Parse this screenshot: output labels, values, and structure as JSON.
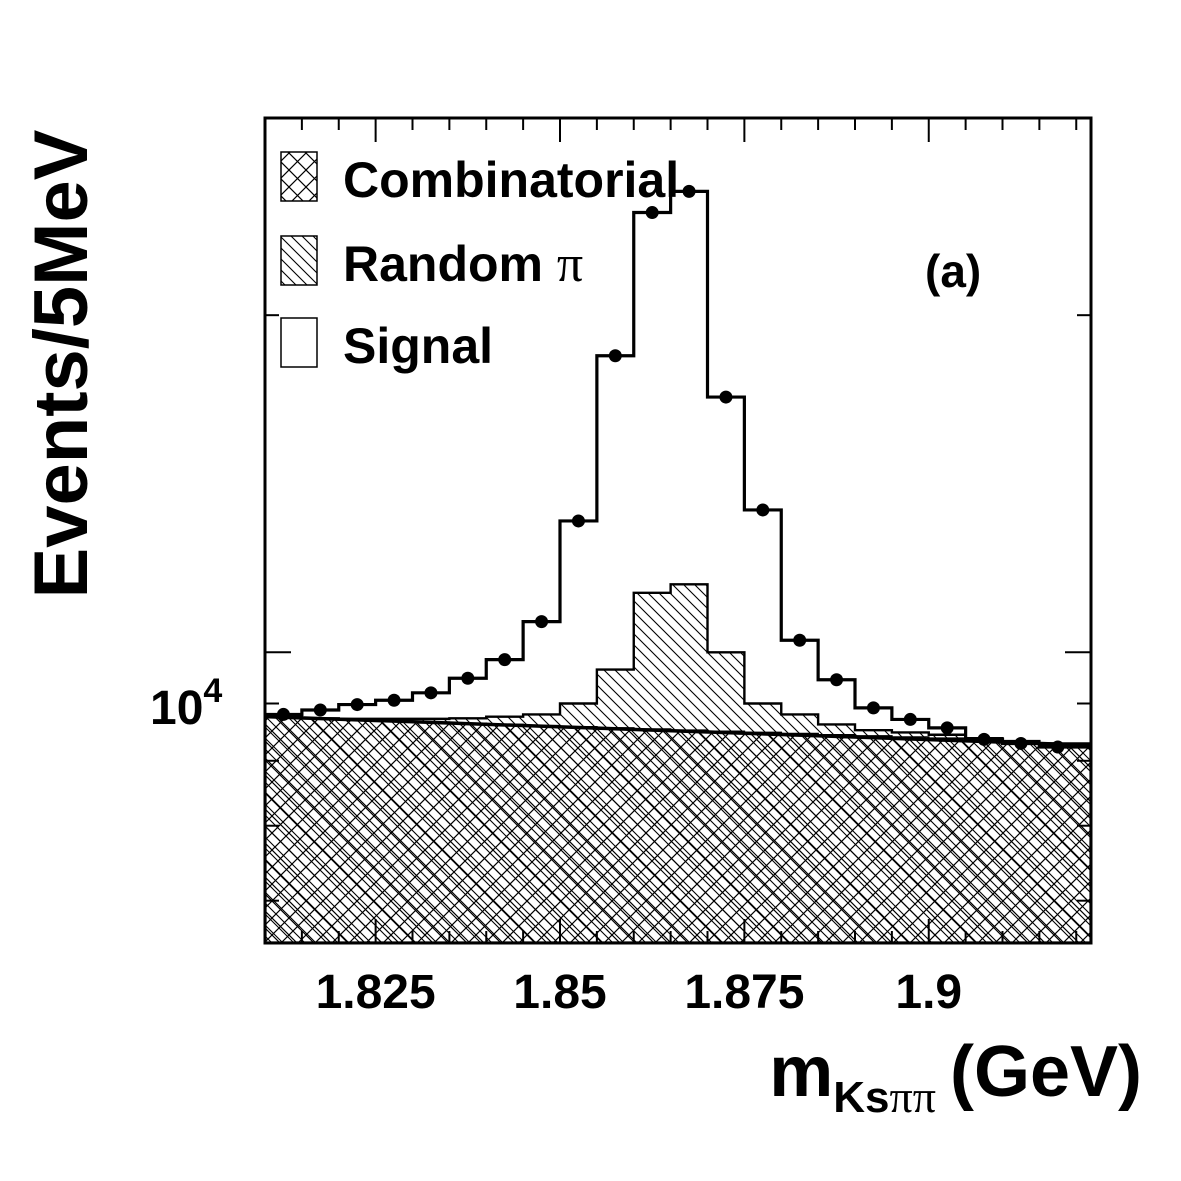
{
  "chart_data": {
    "type": "bar",
    "title": "",
    "panel_label": "(a)",
    "xlabel": {
      "main": "m",
      "sub_latin": "Ks",
      "sub_greek": "ππ",
      "unit": "(GeV)"
    },
    "ylabel": "Events/5MeV",
    "xlim": [
      1.81,
      1.922
    ],
    "ylim": [
      5500,
      30000
    ],
    "yscale": "log",
    "x_ticks": [
      {
        "value": 1.825,
        "label": "1.825"
      },
      {
        "value": 1.85,
        "label": "1.85"
      },
      {
        "value": 1.875,
        "label": "1.875"
      },
      {
        "value": 1.9,
        "label": "1.9"
      }
    ],
    "y_major_tick": {
      "value": 10000,
      "base": "10",
      "exp": "4"
    },
    "bin_edges": [
      1.81,
      1.815,
      1.82,
      1.825,
      1.83,
      1.835,
      1.84,
      1.845,
      1.85,
      1.855,
      1.86,
      1.865,
      1.87,
      1.875,
      1.88,
      1.885,
      1.89,
      1.895,
      1.9,
      1.905,
      1.91,
      1.915,
      1.92
    ],
    "series": [
      {
        "name": "Combinatorial",
        "style": "crosshatch",
        "values": [
          8750,
          8720,
          8700,
          8680,
          8660,
          8640,
          8620,
          8600,
          8580,
          8560,
          8540,
          8520,
          8500,
          8480,
          8460,
          8440,
          8420,
          8400,
          8380,
          8340,
          8310,
          8270
        ]
      },
      {
        "name": "Random π",
        "style": "diagonal-hatch",
        "values": [
          8750,
          8730,
          8720,
          8720,
          8720,
          8730,
          8760,
          8800,
          9000,
          9650,
          11300,
          11500,
          10000,
          9000,
          8800,
          8620,
          8520,
          8480,
          8440,
          8380,
          8330,
          8290
        ]
      },
      {
        "name": "Signal",
        "style": "open",
        "values": [
          8800,
          8880,
          8980,
          9060,
          9200,
          9480,
          9850,
          10650,
          13100,
          18400,
          24700,
          25800,
          16900,
          13400,
          10250,
          9450,
          8920,
          8710,
          8560,
          8360,
          8290,
          8230
        ]
      }
    ],
    "data_points": {
      "x": [
        1.8125,
        1.8175,
        1.8225,
        1.8275,
        1.8325,
        1.8375,
        1.8425,
        1.8475,
        1.8525,
        1.8575,
        1.8625,
        1.8675,
        1.8725,
        1.8775,
        1.8825,
        1.8875,
        1.8925,
        1.8975,
        1.9025,
        1.9075,
        1.9125,
        1.9175
      ],
      "y": [
        8800,
        8880,
        8980,
        9060,
        9200,
        9480,
        9850,
        10650,
        13100,
        18400,
        24700,
        25800,
        16900,
        13400,
        10250,
        9450,
        8920,
        8710,
        8560,
        8360,
        8290,
        8230
      ]
    },
    "fit_line": {
      "x": [
        1.81,
        1.922
      ],
      "y": [
        8760,
        8260
      ]
    },
    "legend": {
      "placement": "top-left",
      "entries": [
        {
          "label": "Combinatorial",
          "style": "crosshatch"
        },
        {
          "label_latin": "Random ",
          "label_greek": "π",
          "style": "diagonal-hatch"
        },
        {
          "label": "Signal",
          "style": "open"
        }
      ]
    },
    "grid": false
  }
}
